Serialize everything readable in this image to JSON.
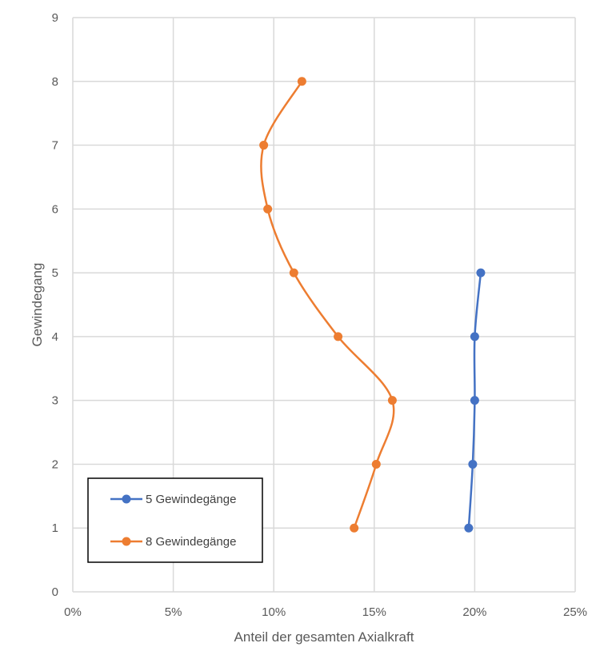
{
  "chart_data": {
    "type": "scatter",
    "xlabel": "Anteil der gesamten Axialkraft",
    "ylabel": "Gewindegang",
    "xlim": [
      0,
      25
    ],
    "ylim": [
      0,
      9
    ],
    "x_ticks": [
      "0%",
      "5%",
      "10%",
      "15%",
      "20%",
      "25%"
    ],
    "y_ticks": [
      "0",
      "1",
      "2",
      "3",
      "4",
      "5",
      "6",
      "7",
      "8",
      "9"
    ],
    "grid": true,
    "smooth_lines": true,
    "legend_position": "bottom-left",
    "series": [
      {
        "name": "5 Gewindegänge",
        "color": "#4472c4",
        "points": [
          {
            "x": 19.7,
            "y": 1
          },
          {
            "x": 19.9,
            "y": 2
          },
          {
            "x": 20.0,
            "y": 3
          },
          {
            "x": 20.0,
            "y": 4
          },
          {
            "x": 20.3,
            "y": 5
          }
        ]
      },
      {
        "name": "8 Gewindegänge",
        "color": "#ed7d31",
        "points": [
          {
            "x": 14.0,
            "y": 1
          },
          {
            "x": 15.1,
            "y": 2
          },
          {
            "x": 15.9,
            "y": 3
          },
          {
            "x": 13.2,
            "y": 4
          },
          {
            "x": 11.0,
            "y": 5
          },
          {
            "x": 9.7,
            "y": 6
          },
          {
            "x": 9.5,
            "y": 7
          },
          {
            "x": 11.4,
            "y": 8
          }
        ]
      }
    ]
  }
}
